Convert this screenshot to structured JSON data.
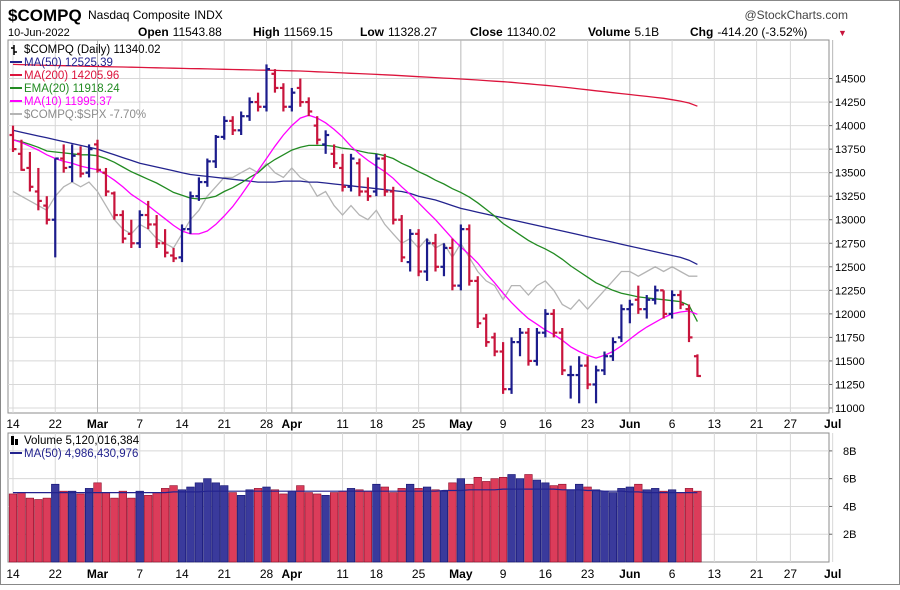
{
  "header": {
    "symbol": "$COMPQ",
    "name": "Nasdaq Composite",
    "exchange": "INDX",
    "copyright": "@StockCharts.com",
    "date": "10-Jun-2022",
    "stats": [
      {
        "label": "Open",
        "value": "11543.88"
      },
      {
        "label": "High",
        "value": "11569.15"
      },
      {
        "label": "Low",
        "value": "11328.27"
      },
      {
        "label": "Close",
        "value": "11340.02"
      },
      {
        "label": "Volume",
        "value": "5.1B"
      },
      {
        "label": "Chg",
        "value": "-414.20 (-3.52%)"
      }
    ],
    "chg_arrow": "▼"
  },
  "legend": [
    {
      "text": "$COMPQ (Daily) 11340.02",
      "color": "#000000",
      "kind": "bar-icon"
    },
    {
      "text": "MA(50) 12525.39",
      "color": "#23238e",
      "kind": "line"
    },
    {
      "text": "MA(200) 14205.96",
      "color": "#dc143c",
      "kind": "line"
    },
    {
      "text": "EMA(20) 11918.24",
      "color": "#228b22",
      "kind": "line"
    },
    {
      "text": "MA(10) 11995.37",
      "color": "#ff00ff",
      "kind": "line"
    },
    {
      "text": "$COMPQ:$SPX -7.70%",
      "color": "#b4b4b4",
      "kind": "line"
    }
  ],
  "volume_legend": [
    {
      "text": "Volume 5,120,016,384",
      "color": "#000000",
      "kind": "bar-icon"
    },
    {
      "text": "MA(50) 4,986,430,976",
      "color": "#23238e",
      "kind": "line"
    }
  ],
  "colors": {
    "up": "#1c1c8c",
    "down": "#c8143c",
    "vol_up": "#3a3a9c",
    "vol_down": "#dc3c5a",
    "grid": "#d8d8d8"
  },
  "chart_data": {
    "type": "ohlc",
    "price_axis": {
      "min": 11000,
      "max": 14750,
      "ticks": [
        11000,
        11250,
        11500,
        11750,
        12000,
        12250,
        12500,
        12750,
        13000,
        13250,
        13500,
        13750,
        14000,
        14250,
        14500
      ]
    },
    "volume_axis": {
      "min": 0,
      "max": 9,
      "ticks": [
        2,
        4,
        6,
        8
      ],
      "tick_labels": [
        "2B",
        "4B",
        "6B",
        "8B"
      ]
    },
    "x_axis_labels": [
      {
        "text": "14",
        "index": 0
      },
      {
        "text": "22",
        "index": 5
      },
      {
        "text": "Mar",
        "index": 10
      },
      {
        "text": "7",
        "index": 15
      },
      {
        "text": "14",
        "index": 20
      },
      {
        "text": "21",
        "index": 25
      },
      {
        "text": "28",
        "index": 30
      },
      {
        "text": "Apr",
        "index": 33
      },
      {
        "text": "11",
        "index": 39
      },
      {
        "text": "18",
        "index": 43
      },
      {
        "text": "25",
        "index": 48
      },
      {
        "text": "May",
        "index": 53
      },
      {
        "text": "9",
        "index": 58
      },
      {
        "text": "16",
        "index": 63
      },
      {
        "text": "23",
        "index": 68
      },
      {
        "text": "Jun",
        "index": 73
      },
      {
        "text": "6",
        "index": 78
      },
      {
        "text": "13",
        "index": 83
      },
      {
        "text": "21",
        "index": 88
      },
      {
        "text": "27",
        "index": 92
      },
      {
        "text": "Jul",
        "index": 97
      }
    ],
    "ohlc": [
      [
        13900,
        14000,
        13720,
        13750
      ],
      [
        13700,
        13850,
        13520,
        13530
      ],
      [
        13550,
        13720,
        13300,
        13350
      ],
      [
        13300,
        13550,
        13100,
        13200
      ],
      [
        13150,
        13250,
        12950,
        13000
      ],
      [
        13000,
        13650,
        12600,
        13650
      ],
      [
        13650,
        13800,
        13500,
        13550
      ],
      [
        13560,
        13800,
        13400,
        13680
      ],
      [
        13700,
        13780,
        13450,
        13490
      ],
      [
        13500,
        13800,
        13450,
        13750
      ],
      [
        13800,
        13850,
        13500,
        13530
      ],
      [
        13500,
        13550,
        13250,
        13300
      ],
      [
        13280,
        13300,
        13000,
        13050
      ],
      [
        13050,
        13100,
        12750,
        12800
      ],
      [
        12850,
        13000,
        12700,
        12750
      ],
      [
        12750,
        13100,
        12700,
        13050
      ],
      [
        13050,
        13200,
        12900,
        12950
      ],
      [
        12950,
        13050,
        12700,
        12750
      ],
      [
        12750,
        12900,
        12600,
        12650
      ],
      [
        12620,
        12700,
        12550,
        12590
      ],
      [
        12600,
        12950,
        12550,
        12900
      ],
      [
        12900,
        13300,
        12850,
        13250
      ],
      [
        13250,
        13450,
        13200,
        13400
      ],
      [
        13400,
        13650,
        13350,
        13620
      ],
      [
        13620,
        13900,
        13550,
        13880
      ],
      [
        13880,
        14100,
        13850,
        14050
      ],
      [
        14050,
        14100,
        13900,
        13950
      ],
      [
        13950,
        14150,
        13900,
        14100
      ],
      [
        14100,
        14300,
        14050,
        14250
      ],
      [
        14250,
        14350,
        14150,
        14200
      ],
      [
        14200,
        14650,
        14150,
        14600
      ],
      [
        14550,
        14600,
        14350,
        14400
      ],
      [
        14400,
        14450,
        14150,
        14200
      ],
      [
        14200,
        14400,
        14150,
        14350
      ],
      [
        14400,
        14500,
        14200,
        14250
      ],
      [
        14250,
        14300,
        14100,
        14150
      ],
      [
        14000,
        14100,
        13800,
        13850
      ],
      [
        13800,
        13950,
        13700,
        13900
      ],
      [
        13700,
        13800,
        13550,
        13600
      ],
      [
        13550,
        13700,
        13300,
        13350
      ],
      [
        13350,
        13700,
        13300,
        13650
      ],
      [
        13600,
        13650,
        13250,
        13300
      ],
      [
        13300,
        13450,
        13200,
        13250
      ],
      [
        13300,
        13700,
        13250,
        13650
      ],
      [
        13650,
        13700,
        13250,
        13300
      ],
      [
        13300,
        13350,
        12950,
        13000
      ],
      [
        13000,
        13050,
        12550,
        12600
      ],
      [
        12550,
        12900,
        12450,
        12850
      ],
      [
        12850,
        12900,
        12400,
        12450
      ],
      [
        12450,
        12800,
        12350,
        12750
      ],
      [
        12750,
        12850,
        12450,
        12500
      ],
      [
        12500,
        12750,
        12400,
        12700
      ],
      [
        12700,
        12800,
        12250,
        12300
      ],
      [
        12300,
        12950,
        12250,
        12900
      ],
      [
        12900,
        12950,
        12300,
        12350
      ],
      [
        12350,
        12400,
        11850,
        11900
      ],
      [
        11950,
        12000,
        11650,
        11700
      ],
      [
        11750,
        11800,
        11550,
        11600
      ],
      [
        11600,
        11700,
        11150,
        11200
      ],
      [
        11200,
        11750,
        11150,
        11700
      ],
      [
        11700,
        11850,
        11550,
        11800
      ],
      [
        11800,
        11850,
        11450,
        11500
      ],
      [
        11500,
        11850,
        11450,
        11800
      ],
      [
        11800,
        12050,
        11750,
        12000
      ],
      [
        12000,
        12050,
        11750,
        11800
      ],
      [
        11800,
        11850,
        11350,
        11400
      ],
      [
        11350,
        11450,
        11100,
        11350
      ],
      [
        11350,
        11550,
        11050,
        11450
      ],
      [
        11450,
        11550,
        11200,
        11250
      ],
      [
        11250,
        11450,
        11050,
        11400
      ],
      [
        11400,
        11600,
        11350,
        11550
      ],
      [
        11550,
        11750,
        11500,
        11700
      ],
      [
        11750,
        12100,
        11700,
        12050
      ],
      [
        12050,
        12150,
        11900,
        12100
      ],
      [
        12150,
        12300,
        12000,
        12050
      ],
      [
        12050,
        12200,
        11950,
        12150
      ],
      [
        12150,
        12300,
        12100,
        12250
      ],
      [
        12250,
        12250,
        11950,
        12000
      ],
      [
        12000,
        12250,
        11950,
        12200
      ],
      [
        12200,
        12250,
        12050,
        12100
      ],
      [
        12050,
        12100,
        11700,
        11750
      ],
      [
        11550,
        11570,
        11330,
        11340
      ]
    ],
    "ma50": [
      13950,
      13930,
      13910,
      13890,
      13870,
      13850,
      13830,
      13810,
      13790,
      13770,
      13750,
      13720,
      13690,
      13660,
      13630,
      13600,
      13580,
      13560,
      13540,
      13520,
      13500,
      13480,
      13470,
      13460,
      13450,
      13440,
      13430,
      13420,
      13410,
      13400,
      13400,
      13400,
      13410,
      13410,
      13410,
      13400,
      13400,
      13390,
      13380,
      13370,
      13360,
      13350,
      13340,
      13330,
      13320,
      13310,
      13300,
      13280,
      13250,
      13230,
      13210,
      13180,
      13150,
      13120,
      13100,
      13080,
      13060,
      13040,
      13020,
      13000,
      12980,
      12960,
      12940,
      12920,
      12900,
      12880,
      12860,
      12840,
      12820,
      12800,
      12780,
      12760,
      12740,
      12720,
      12700,
      12680,
      12660,
      12640,
      12620,
      12600,
      12570,
      12525
    ],
    "ma200": [
      14650,
      14648,
      14645,
      14643,
      14640,
      14638,
      14636,
      14634,
      14632,
      14630,
      14628,
      14626,
      14624,
      14622,
      14620,
      14618,
      14616,
      14614,
      14612,
      14610,
      14608,
      14606,
      14604,
      14602,
      14600,
      14598,
      14596,
      14594,
      14592,
      14590,
      14588,
      14586,
      14584,
      14582,
      14580,
      14576,
      14572,
      14568,
      14564,
      14560,
      14556,
      14552,
      14548,
      14544,
      14540,
      14535,
      14530,
      14525,
      14520,
      14515,
      14510,
      14505,
      14500,
      14495,
      14490,
      14484,
      14478,
      14472,
      14466,
      14460,
      14452,
      14444,
      14436,
      14428,
      14420,
      14410,
      14400,
      14390,
      14380,
      14370,
      14360,
      14350,
      14340,
      14330,
      14320,
      14310,
      14300,
      14290,
      14275,
      14260,
      14240,
      14206
    ],
    "ema20": [
      13850,
      13830,
      13800,
      13770,
      13730,
      13720,
      13710,
      13700,
      13690,
      13690,
      13680,
      13650,
      13610,
      13560,
      13510,
      13470,
      13430,
      13390,
      13340,
      13290,
      13260,
      13230,
      13220,
      13230,
      13250,
      13300,
      13340,
      13390,
      13450,
      13500,
      13580,
      13640,
      13690,
      13740,
      13770,
      13790,
      13790,
      13790,
      13780,
      13760,
      13750,
      13730,
      13710,
      13700,
      13680,
      13650,
      13600,
      13560,
      13510,
      13470,
      13420,
      13380,
      13330,
      13290,
      13240,
      13180,
      13110,
      13040,
      12960,
      12900,
      12840,
      12780,
      12730,
      12690,
      12640,
      12580,
      12510,
      12450,
      12390,
      12330,
      12290,
      12250,
      12220,
      12200,
      12180,
      12170,
      12160,
      12150,
      12140,
      12130,
      12090,
      11918
    ],
    "ma10": [
      13850,
      13820,
      13780,
      13740,
      13690,
      13650,
      13620,
      13600,
      13570,
      13550,
      13530,
      13480,
      13420,
      13350,
      13270,
      13210,
      13150,
      13080,
      13010,
      12940,
      12880,
      12850,
      12850,
      12880,
      12950,
      13040,
      13140,
      13260,
      13390,
      13520,
      13650,
      13780,
      13900,
      14000,
      14080,
      14110,
      14080,
      14030,
      13960,
      13880,
      13780,
      13700,
      13630,
      13570,
      13510,
      13440,
      13350,
      13270,
      13180,
      13090,
      13000,
      12900,
      12800,
      12710,
      12630,
      12540,
      12430,
      12330,
      12220,
      12120,
      12030,
      11950,
      11890,
      11830,
      11780,
      11720,
      11650,
      11600,
      11560,
      11530,
      11560,
      11600,
      11660,
      11730,
      11800,
      11860,
      11910,
      11960,
      12000,
      12020,
      12030,
      11995
    ],
    "spx_ratio": [
      13300,
      13250,
      13200,
      13150,
      13100,
      13250,
      13350,
      13400,
      13350,
      13400,
      13300,
      13150,
      13000,
      12900,
      12850,
      12950,
      12900,
      12800,
      12750,
      12700,
      12850,
      13000,
      13100,
      13250,
      13350,
      13450,
      13450,
      13500,
      13550,
      13500,
      13600,
      13500,
      13450,
      13550,
      13450,
      13400,
      13250,
      13300,
      13150,
      13050,
      13150,
      13050,
      13000,
      13100,
      12950,
      12850,
      12750,
      12800,
      12700,
      12800,
      12700,
      12750,
      12600,
      12750,
      12600,
      12450,
      12350,
      12300,
      12150,
      12300,
      12300,
      12200,
      12300,
      12350,
      12250,
      12100,
      12050,
      12150,
      12050,
      12150,
      12250,
      12350,
      12450,
      12450,
      12400,
      12450,
      12500,
      12450,
      12500,
      12450,
      12400,
      12400
    ],
    "volume": [
      4.9,
      5.0,
      4.6,
      4.5,
      4.6,
      5.6,
      5.1,
      5.1,
      4.9,
      5.3,
      5.7,
      5.0,
      4.6,
      5.1,
      4.6,
      5.1,
      4.8,
      5.0,
      5.3,
      5.5,
      5.2,
      5.4,
      5.7,
      6.0,
      5.7,
      5.5,
      5.0,
      4.8,
      5.2,
      5.3,
      5.4,
      5.2,
      4.9,
      5.1,
      5.5,
      5.0,
      4.9,
      4.8,
      5.0,
      5.1,
      5.3,
      5.2,
      5.1,
      5.6,
      5.4,
      5.0,
      5.3,
      5.6,
      5.3,
      5.4,
      5.2,
      5.1,
      5.7,
      6.0,
      5.6,
      6.1,
      5.8,
      6.0,
      6.1,
      6.3,
      6.0,
      6.3,
      5.9,
      5.7,
      5.5,
      5.6,
      5.2,
      5.6,
      5.4,
      5.2,
      5.1,
      5.0,
      5.3,
      5.4,
      5.6,
      5.2,
      5.3,
      5.1,
      5.2,
      5.0,
      5.3,
      5.1
    ],
    "volume_ma50": [
      5.0,
      5.0,
      5.0,
      5.0,
      5.0,
      5.0,
      5.0,
      5.0,
      5.0,
      5.0,
      5.0,
      5.0,
      5.0,
      5.0,
      5.0,
      5.0,
      5.0,
      5.0,
      5.0,
      5.05,
      5.05,
      5.05,
      5.05,
      5.1,
      5.1,
      5.1,
      5.1,
      5.1,
      5.1,
      5.1,
      5.1,
      5.1,
      5.1,
      5.1,
      5.1,
      5.1,
      5.1,
      5.1,
      5.1,
      5.1,
      5.1,
      5.1,
      5.1,
      5.1,
      5.1,
      5.1,
      5.1,
      5.1,
      5.1,
      5.1,
      5.1,
      5.15,
      5.15,
      5.15,
      5.2,
      5.2,
      5.2,
      5.2,
      5.25,
      5.25,
      5.25,
      5.25,
      5.25,
      5.25,
      5.25,
      5.2,
      5.2,
      5.2,
      5.15,
      5.15,
      5.1,
      5.1,
      5.1,
      5.05,
      5.05,
      5.0,
      5.0,
      5.0,
      5.0,
      5.0,
      5.0,
      4.99
    ]
  }
}
